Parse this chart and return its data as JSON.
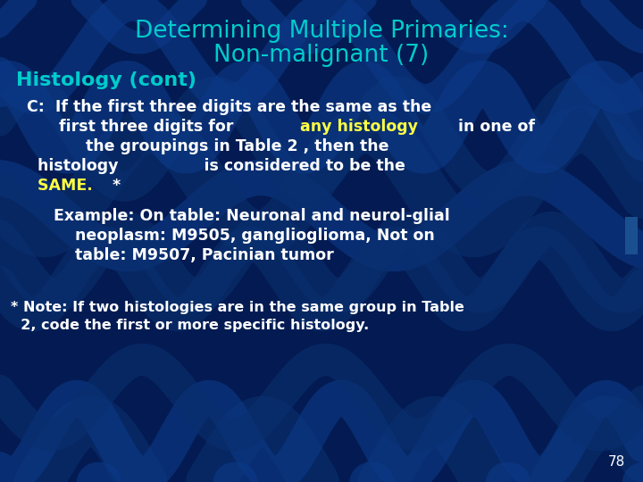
{
  "title_line1": "Determining Multiple Primaries:",
  "title_line2": "Non-malignant (7)",
  "title_color": "#00CCCC",
  "bg_color": "#031B52",
  "subtitle": "Histology (cont)",
  "subtitle_color": "#00CCCC",
  "body_color": "#FFFFFF",
  "highlight_color": "#FFFF44",
  "page_num": "78",
  "rect_color": "#1A5090",
  "wave_color1": "#0A3070",
  "wave_color2": "#0C3A88",
  "note_color": "#FFFFFF"
}
